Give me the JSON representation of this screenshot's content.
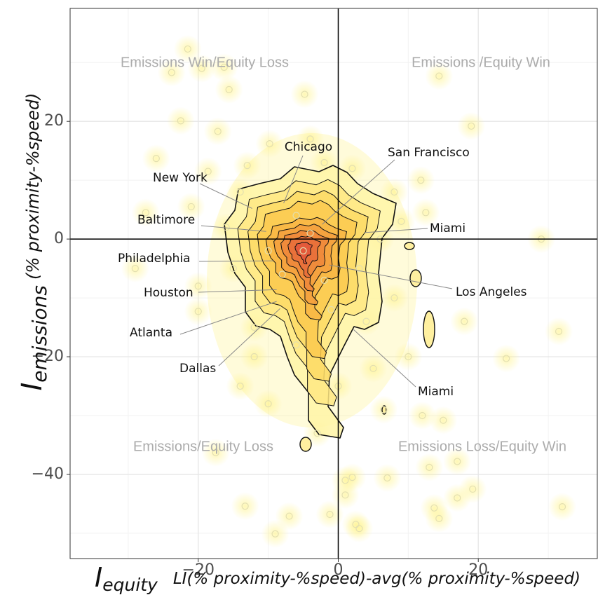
{
  "chart_data": {
    "type": "scatter",
    "x_label_symbol": "I",
    "x_label_sub": "equity",
    "x_label_text": "LI(% proximity-%speed)-avg(% proximity-%speed)",
    "y_label_symbol": "I",
    "y_label_sub": "emissions",
    "y_label_text": "(% proximity-%speed)",
    "xlim": [
      -38.3,
      37
    ],
    "ylim": [
      -54.3,
      39.2
    ],
    "xticks": [
      {
        "value": -20,
        "label": "−20"
      },
      0,
      20
    ],
    "yticks": [
      {
        "value": -40,
        "label": "−40"
      },
      {
        "value": -20,
        "label": "−20"
      },
      0,
      20
    ],
    "x_minor_grid": [
      -30,
      -10,
      10,
      30
    ],
    "y_minor_grid": [
      -50,
      -30,
      -10,
      10,
      30
    ],
    "grid": true,
    "reference_lines": {
      "x": 0,
      "y": 0
    },
    "point_color": "#e3dfb0",
    "density_color": "#fff27a",
    "x": [
      -21.5,
      -23.8,
      -19.5,
      -16.3,
      -15.6,
      -4.8,
      14.4,
      19,
      -22.5,
      -17.2,
      -26,
      -9.8,
      -13,
      -18.6,
      11.8,
      12.5,
      29,
      -27.5,
      -21,
      -29,
      -20,
      -20,
      18,
      31.5,
      24,
      -14,
      -12,
      15,
      12,
      13,
      17,
      19.2,
      13.7,
      14.4,
      -13.3,
      -7,
      -1.2,
      1,
      2,
      1,
      2.5,
      3,
      -9,
      32,
      7,
      17,
      -17.5,
      6.5,
      -4,
      -2,
      2,
      8,
      -15,
      -16,
      -14,
      8,
      10,
      -10,
      -3,
      5,
      -6,
      0,
      3,
      -8,
      -5,
      -4,
      -2,
      -10,
      -6,
      -1,
      4,
      -12,
      6,
      9
    ],
    "y": [
      32.3,
      28.3,
      29,
      29.2,
      25.4,
      24.6,
      27.7,
      19.2,
      20.1,
      18.3,
      13.7,
      16.2,
      12.5,
      11.5,
      10,
      4.5,
      0,
      4.5,
      5.5,
      -5,
      -8,
      -12.3,
      -14,
      -15.7,
      -20.3,
      -25,
      -20,
      -30.8,
      -30,
      -38.8,
      -44,
      -42.5,
      -45.7,
      -47.5,
      -45.4,
      -47.1,
      -46.8,
      -41,
      -40.5,
      -43.5,
      -48.5,
      -49.2,
      -50.1,
      -45.5,
      -40.6,
      -37.8,
      -36.3,
      -29,
      17,
      13,
      12,
      8,
      -5,
      2,
      8,
      -10,
      -20,
      -28,
      -33,
      -22,
      -18,
      -25,
      -5,
      -6,
      -2,
      1,
      -7,
      -2,
      4,
      -12,
      -14,
      -15,
      0,
      3
    ],
    "quadrant_labels": [
      "Emissions Win/Equity Loss",
      "Emissions /Equity Win",
      "Emissions/Equity Loss",
      "Emissions Loss/Equity Win"
    ],
    "annotations": [
      {
        "text": "Chicago",
        "x": -7.8,
        "y": 6.1
      },
      {
        "text": "San Francisco",
        "x": -2.3,
        "y": 2.5
      },
      {
        "text": "New York",
        "x": -12.3,
        "y": 5.2
      },
      {
        "text": "Baltimore",
        "x": -10.3,
        "y": 1.3
      },
      {
        "text": "Miami",
        "x": 3.7,
        "y": 1.1
      },
      {
        "text": "Philadelphia",
        "x": -9.3,
        "y": -3.7
      },
      {
        "text": "Los Angeles",
        "x": -1.3,
        "y": -4.4
      },
      {
        "text": "Houston",
        "x": -8.8,
        "y": -8.6
      },
      {
        "text": "Atlanta",
        "x": -8.8,
        "y": -10.6
      },
      {
        "text": "Dallas",
        "x": -8.3,
        "y": -11.8
      },
      {
        "text": "Miami",
        "x": 2.2,
        "y": -15.4
      }
    ]
  }
}
